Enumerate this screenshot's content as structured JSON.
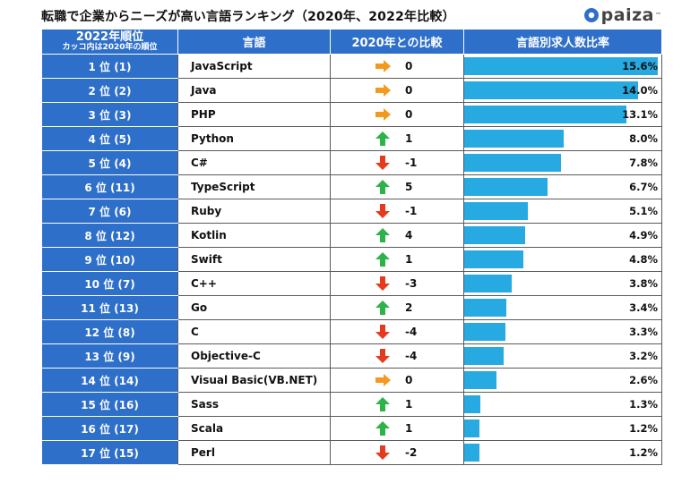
{
  "title": "転職で企業からニーズが高い言語ランキング（2020年、2022年比較）",
  "logo": {
    "text": "paiza",
    "tm": "™"
  },
  "colors": {
    "header": "#2e6fca",
    "bar": "#27a9e1",
    "up": "#2db34a",
    "down": "#e53a1e",
    "same": "#f39a1e"
  },
  "chart_data": {
    "type": "table",
    "title": "転職で企業からニーズが高い言語ランキング（2020年、2022年比較）",
    "columns": {
      "rank_main": "2022年順位",
      "rank_sub": "カッコ内は2020年の順位",
      "language": "言語",
      "change": "2020年との比較",
      "ratio": "言語別求人数比率"
    },
    "ratio_max": 15.6,
    "rows": [
      {
        "rank": "1 位 (1)",
        "language": "JavaScript",
        "trend": "same",
        "change": "0",
        "ratio": 15.6,
        "ratio_label": "15.6%"
      },
      {
        "rank": "2 位 (2)",
        "language": "Java",
        "trend": "same",
        "change": "0",
        "ratio": 14.0,
        "ratio_label": "14.0%"
      },
      {
        "rank": "3 位 (3)",
        "language": "PHP",
        "trend": "same",
        "change": "0",
        "ratio": 13.1,
        "ratio_label": "13.1%"
      },
      {
        "rank": "4 位 (5)",
        "language": "Python",
        "trend": "up",
        "change": "1",
        "ratio": 8.0,
        "ratio_label": "8.0%"
      },
      {
        "rank": "5 位 (4)",
        "language": "C#",
        "trend": "down",
        "change": "-1",
        "ratio": 7.8,
        "ratio_label": "7.8%"
      },
      {
        "rank": "6 位 (11)",
        "language": "TypeScript",
        "trend": "up",
        "change": "5",
        "ratio": 6.7,
        "ratio_label": "6.7%"
      },
      {
        "rank": "7 位 (6)",
        "language": "Ruby",
        "trend": "down",
        "change": "-1",
        "ratio": 5.1,
        "ratio_label": "5.1%"
      },
      {
        "rank": "8 位 (12)",
        "language": "Kotlin",
        "trend": "up",
        "change": "4",
        "ratio": 4.9,
        "ratio_label": "4.9%"
      },
      {
        "rank": "9 位 (10)",
        "language": "Swift",
        "trend": "up",
        "change": "1",
        "ratio": 4.8,
        "ratio_label": "4.8%"
      },
      {
        "rank": "10 位 (7)",
        "language": "C++",
        "trend": "down",
        "change": "-3",
        "ratio": 3.8,
        "ratio_label": "3.8%"
      },
      {
        "rank": "11 位 (13)",
        "language": "Go",
        "trend": "up",
        "change": "2",
        "ratio": 3.4,
        "ratio_label": "3.4%"
      },
      {
        "rank": "12 位 (8)",
        "language": "C",
        "trend": "down",
        "change": "-4",
        "ratio": 3.3,
        "ratio_label": "3.3%"
      },
      {
        "rank": "13 位 (9)",
        "language": "Objective-C",
        "trend": "down",
        "change": "-4",
        "ratio": 3.2,
        "ratio_label": "3.2%"
      },
      {
        "rank": "14 位 (14)",
        "language": "Visual Basic(VB.NET)",
        "trend": "same",
        "change": "0",
        "ratio": 2.6,
        "ratio_label": "2.6%"
      },
      {
        "rank": "15 位 (16)",
        "language": "Sass",
        "trend": "up",
        "change": "1",
        "ratio": 1.3,
        "ratio_label": "1.3%"
      },
      {
        "rank": "16 位 (17)",
        "language": "Scala",
        "trend": "up",
        "change": "1",
        "ratio": 1.2,
        "ratio_label": "1.2%"
      },
      {
        "rank": "17 位 (15)",
        "language": "Perl",
        "trend": "down",
        "change": "-2",
        "ratio": 1.2,
        "ratio_label": "1.2%"
      }
    ]
  }
}
